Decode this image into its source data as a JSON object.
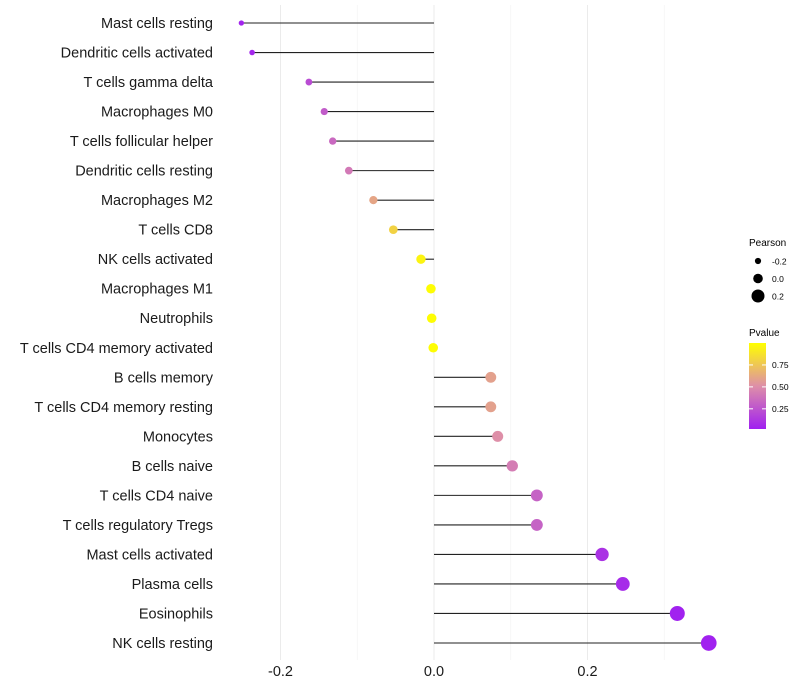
{
  "chart_data": {
    "type": "lollipop",
    "title": "",
    "xlabel": "",
    "ylabel": "",
    "xlim": [
      -0.28,
      0.37
    ],
    "x_ticks": [
      -0.2,
      0.0,
      0.2
    ],
    "x_tick_labels": [
      "-0.2",
      "0.0",
      "0.2"
    ],
    "grid": true,
    "categories": [
      "Mast cells resting",
      "Dendritic cells activated",
      "T cells gamma delta",
      "Macrophages M0",
      "T cells follicular helper",
      "Dendritic cells resting",
      "Macrophages M2",
      "T cells CD8",
      "NK cells activated",
      "Macrophages M1",
      "Neutrophils",
      "T cells CD4 memory activated",
      "B cells memory",
      "T cells CD4 memory resting",
      "Monocytes",
      "B cells naive",
      "T cells CD4 naive",
      "T cells regulatory  Tregs",
      "Mast cells activated",
      "Plasma cells",
      "Eosinophils",
      "NK cells resting"
    ],
    "pearson": [
      -0.251,
      -0.237,
      -0.163,
      -0.143,
      -0.132,
      -0.111,
      -0.079,
      -0.053,
      -0.017,
      -0.004,
      -0.003,
      -0.001,
      0.074,
      0.074,
      0.083,
      0.102,
      0.134,
      0.134,
      0.219,
      0.246,
      0.317,
      0.358
    ],
    "pvalue": [
      0.02,
      0.03,
      0.2,
      0.27,
      0.33,
      0.4,
      0.6,
      0.8,
      0.95,
      0.99,
      0.99,
      0.99,
      0.58,
      0.58,
      0.5,
      0.42,
      0.3,
      0.3,
      0.08,
      0.05,
      0.01,
      0.01
    ],
    "legend": {
      "placement": "right",
      "size_title": "Pearson",
      "size_values": [
        -0.2,
        0.0,
        0.2
      ],
      "size_labels": [
        "-0.2",
        "0.0",
        "0.2"
      ],
      "color_title": "Pvalue",
      "color_ticks": [
        0.25,
        0.5,
        0.75
      ],
      "color_labels": [
        "0.25",
        "0.50",
        "0.75"
      ],
      "color_low": "#a020f0",
      "color_mid": "#de8fa8",
      "color_high": "#ffff00"
    }
  }
}
